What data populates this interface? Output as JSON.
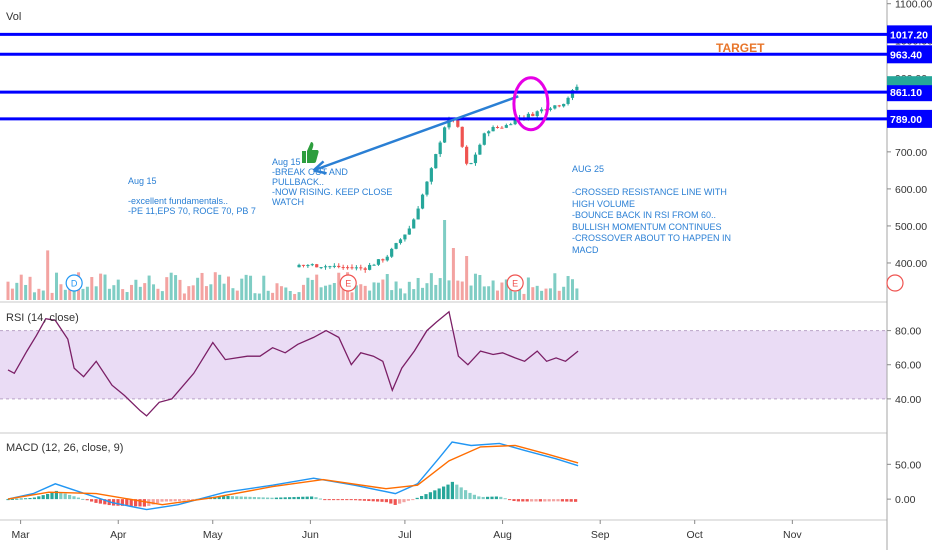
{
  "pane_labels": {
    "vol": "Vol",
    "rsi": "RSI (14, close)",
    "macd": "MACD (12, 26, close, 9)"
  },
  "colors": {
    "up": "#26a69a",
    "down": "#ef5350",
    "up_vol": "#7fcdc4",
    "down_vol": "#f3a3a1",
    "level_line": "#0000ff",
    "rsi_line": "#7b1f66",
    "rsi_band": "#eadcf5",
    "macd_line": "#2196f3",
    "signal_line": "#ff6d00",
    "annotation": "#2a7fd4",
    "target": "#e8762b",
    "circle": "#e600e6",
    "current_price": "#26a69a"
  },
  "annotations": {
    "note1": "Aug 15\n\n-excellent fundamentals..\n-PE 11,EPS 70, ROCE 70, PB 7",
    "note2": "Aug 15\n-BREAK OUT AND\nPULLBACK..\n-NOW RISING. KEEP CLOSE\nWATCH",
    "note3": "AUG 25\n\n-CROSSED RESISTANCE LINE WITH\nHIGH VOLUME\n-BOUNCE BACK IN RSI FROM 60..\nBULLISH MOMENTUM CONTINUES\n-CROSSOVER ABOUT TO HAPPEN IN\nMACD",
    "target": "TARGET"
  },
  "event_markers": [
    {
      "label": "D",
      "month": "Mar",
      "day": 18
    },
    {
      "label": "E",
      "month": "Jun",
      "day": 13
    },
    {
      "label": "E",
      "month": "Aug",
      "day": 5
    }
  ],
  "chart_data": [
    {
      "type": "candlestick",
      "title": "",
      "x_axis_labels": [
        "Mar",
        "Apr",
        "May",
        "Jun",
        "Jul",
        "Aug",
        "Sep",
        "Oct",
        "Nov"
      ],
      "y_ticks": [
        "1100.00",
        "1000.00",
        "900.00",
        "800.00",
        "700.00",
        "600.00",
        "500.00",
        "400.00"
      ],
      "ylim": [
        300,
        1110
      ],
      "horizontal_levels": [
        {
          "label": "1017.20",
          "value": 1017.2
        },
        {
          "label": "963.40",
          "value": 963.4
        },
        {
          "label": "861.10",
          "value": 861.1
        },
        {
          "label": "789.00",
          "value": 789.0
        }
      ],
      "current_price_tag": {
        "label": "880.00",
        "value": 880
      },
      "trendline": {
        "from": [
          "Jun",
          870
        ],
        "to": [
          "Aug",
          850
        ]
      },
      "price_path": {
        "months": [
          "Feb",
          "Mar",
          "Apr",
          "May",
          "Jun",
          "Jul",
          "Aug"
        ],
        "anchors": [
          [
            "2020-02-26",
            300
          ],
          [
            "2020-05-01",
            330
          ],
          [
            "2020-05-15",
            385
          ],
          [
            "2020-05-31",
            395
          ],
          [
            "2020-06-18",
            385
          ],
          [
            "2020-06-25",
            415
          ],
          [
            "2020-07-03",
            500
          ],
          [
            "2020-07-09",
            640
          ],
          [
            "2020-07-14",
            780
          ],
          [
            "2020-07-17",
            790
          ],
          [
            "2020-07-21",
            650
          ],
          [
            "2020-07-27",
            760
          ],
          [
            "2020-08-02",
            770
          ],
          [
            "2020-08-05",
            790
          ],
          [
            "2020-08-10",
            800
          ],
          [
            "2020-08-15",
            820
          ],
          [
            "2020-08-20",
            830
          ],
          [
            "2020-08-25",
            880
          ]
        ]
      },
      "volume_spikes": [
        {
          "date": "2020-07-14",
          "level": 1.0,
          "dir": "down"
        },
        {
          "date": "2020-07-17",
          "level": 0.65,
          "dir": "up"
        },
        {
          "date": "2020-07-20",
          "level": 0.55,
          "dir": "down"
        },
        {
          "date": "2020-03-09",
          "level": 0.75,
          "dir": "up"
        },
        {
          "date": "2020-03-10",
          "level": 0.62,
          "dir": "down"
        }
      ]
    },
    {
      "type": "line",
      "title": "RSI (14, close)",
      "y_ticks": [
        "80.00",
        "60.00",
        "40.00"
      ],
      "ylim": [
        20,
        95
      ],
      "band": [
        40,
        80
      ],
      "series": [
        {
          "points": [
            [
              "2020-02-26",
              57
            ],
            [
              "2020-02-28",
              55
            ],
            [
              "2020-03-03",
              68
            ],
            [
              "2020-03-06",
              77
            ],
            [
              "2020-03-09",
              87
            ],
            [
              "2020-03-12",
              86
            ],
            [
              "2020-03-16",
              75
            ],
            [
              "2020-03-18",
              58
            ],
            [
              "2020-03-21",
              53
            ],
            [
              "2020-03-25",
              62
            ],
            [
              "2020-03-30",
              48
            ],
            [
              "2020-04-03",
              42
            ],
            [
              "2020-04-08",
              33
            ],
            [
              "2020-04-10",
              30
            ],
            [
              "2020-04-14",
              38
            ],
            [
              "2020-04-18",
              40
            ],
            [
              "2020-04-25",
              55
            ],
            [
              "2020-05-01",
              73
            ],
            [
              "2020-05-05",
              63
            ],
            [
              "2020-05-12",
              65
            ],
            [
              "2020-05-16",
              65
            ],
            [
              "2020-05-20",
              70
            ],
            [
              "2020-05-24",
              67
            ],
            [
              "2020-05-28",
              72
            ],
            [
              "2020-06-02",
              76
            ],
            [
              "2020-06-06",
              80
            ],
            [
              "2020-06-10",
              76
            ],
            [
              "2020-06-14",
              60
            ],
            [
              "2020-06-17",
              67
            ],
            [
              "2020-06-21",
              65
            ],
            [
              "2020-06-24",
              62
            ],
            [
              "2020-06-27",
              45
            ],
            [
              "2020-06-30",
              58
            ],
            [
              "2020-07-04",
              68
            ],
            [
              "2020-07-08",
              80
            ],
            [
              "2020-07-11",
              85
            ],
            [
              "2020-07-15",
              91
            ],
            [
              "2020-07-18",
              65
            ],
            [
              "2020-07-21",
              60
            ],
            [
              "2020-07-25",
              68
            ],
            [
              "2020-07-29",
              66
            ],
            [
              "2020-08-01",
              67
            ],
            [
              "2020-08-05",
              64
            ],
            [
              "2020-08-08",
              62
            ],
            [
              "2020-08-12",
              68
            ],
            [
              "2020-08-15",
              62
            ],
            [
              "2020-08-18",
              64
            ],
            [
              "2020-08-21",
              62
            ],
            [
              "2020-08-25",
              68
            ]
          ]
        }
      ]
    },
    {
      "type": "line",
      "title": "MACD (12, 26, close, 9)",
      "y_ticks": [
        "50.00",
        "0.00"
      ],
      "ylim": [
        -30,
        95
      ],
      "series": [
        {
          "role": "macd",
          "points": [
            [
              "2020-02-26",
              0
            ],
            [
              "2020-03-05",
              8
            ],
            [
              "2020-03-12",
              22
            ],
            [
              "2020-03-20",
              10
            ],
            [
              "2020-03-30",
              -5
            ],
            [
              "2020-04-10",
              -15
            ],
            [
              "2020-04-20",
              -8
            ],
            [
              "2020-05-05",
              10
            ],
            [
              "2020-05-20",
              20
            ],
            [
              "2020-06-02",
              30
            ],
            [
              "2020-06-15",
              20
            ],
            [
              "2020-06-28",
              8
            ],
            [
              "2020-07-05",
              22
            ],
            [
              "2020-07-12",
              60
            ],
            [
              "2020-07-16",
              82
            ],
            [
              "2020-07-22",
              77
            ],
            [
              "2020-07-31",
              80
            ],
            [
              "2020-08-08",
              70
            ],
            [
              "2020-08-18",
              58
            ],
            [
              "2020-08-25",
              48
            ]
          ]
        },
        {
          "role": "signal",
          "points": [
            [
              "2020-02-26",
              0
            ],
            [
              "2020-03-10",
              10
            ],
            [
              "2020-03-25",
              8
            ],
            [
              "2020-04-15",
              -8
            ],
            [
              "2020-05-01",
              2
            ],
            [
              "2020-05-20",
              18
            ],
            [
              "2020-06-05",
              28
            ],
            [
              "2020-06-25",
              15
            ],
            [
              "2020-07-05",
              20
            ],
            [
              "2020-07-15",
              55
            ],
            [
              "2020-07-25",
              75
            ],
            [
              "2020-08-05",
              77
            ],
            [
              "2020-08-15",
              65
            ],
            [
              "2020-08-25",
              52
            ]
          ]
        }
      ]
    }
  ]
}
